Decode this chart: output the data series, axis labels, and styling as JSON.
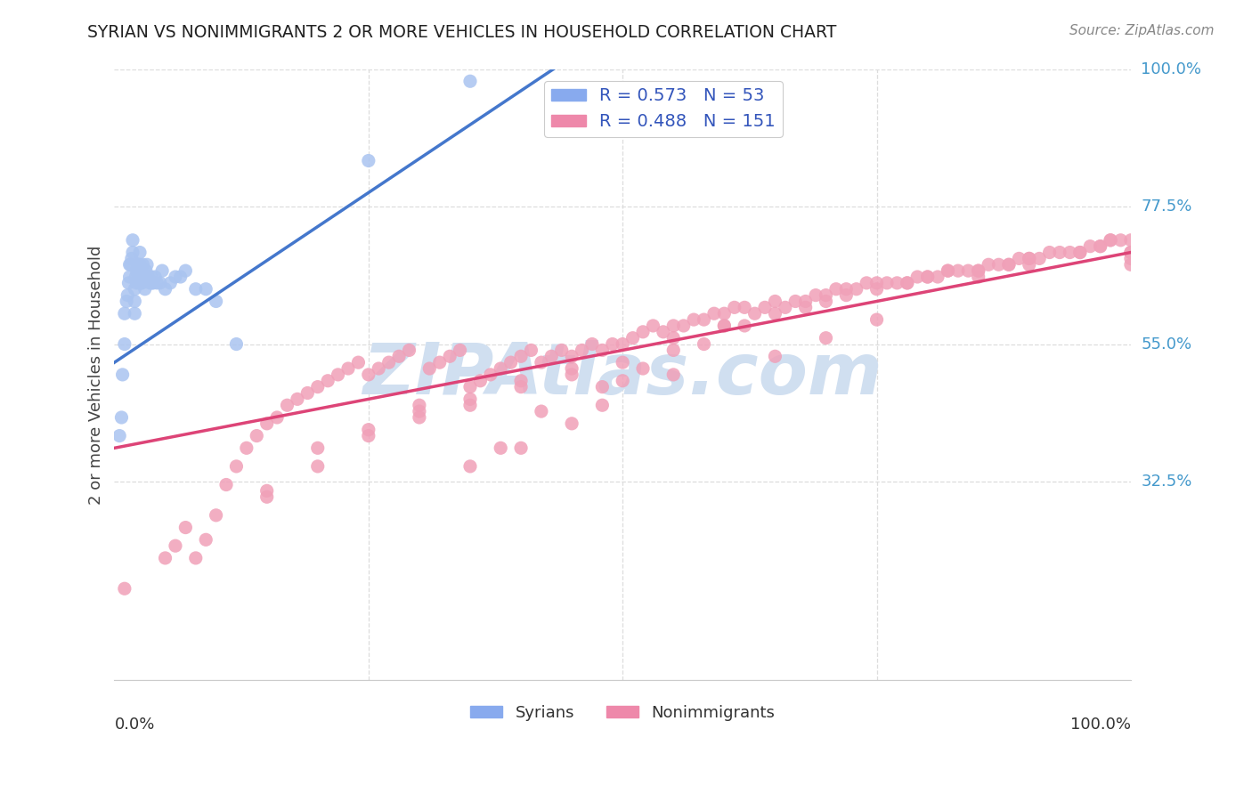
{
  "title": "SYRIAN VS NONIMMIGRANTS 2 OR MORE VEHICLES IN HOUSEHOLD CORRELATION CHART",
  "source": "Source: ZipAtlas.com",
  "ylabel": "2 or more Vehicles in Household",
  "legend_blue_text": "R = 0.573   N = 53",
  "legend_pink_text": "R = 0.488   N = 151",
  "legend_label_blue": "Syrians",
  "legend_label_pink": "Nonimmigrants",
  "bg_color": "#ffffff",
  "blue_dot_color": "#aac4f0",
  "pink_dot_color": "#f0a0b8",
  "blue_line_color": "#4477cc",
  "pink_line_color": "#dd4477",
  "right_label_color": "#4499cc",
  "watermark_color": "#d0dff0",
  "title_color": "#222222",
  "source_color": "#888888",
  "grid_color": "#dddddd",
  "blue_legend_patch": "#88aaee",
  "pink_legend_patch": "#ee88aa",
  "syrians_x": [
    0.005,
    0.007,
    0.008,
    0.01,
    0.01,
    0.012,
    0.013,
    0.014,
    0.015,
    0.015,
    0.016,
    0.017,
    0.018,
    0.018,
    0.02,
    0.02,
    0.02,
    0.021,
    0.022,
    0.022,
    0.023,
    0.023,
    0.024,
    0.025,
    0.025,
    0.026,
    0.027,
    0.028,
    0.028,
    0.03,
    0.03,
    0.031,
    0.032,
    0.033,
    0.035,
    0.036,
    0.037,
    0.038,
    0.04,
    0.042,
    0.045,
    0.047,
    0.05,
    0.055,
    0.06,
    0.065,
    0.07,
    0.08,
    0.09,
    0.1,
    0.12,
    0.25,
    0.35
  ],
  "syrians_y": [
    0.4,
    0.43,
    0.5,
    0.55,
    0.6,
    0.62,
    0.63,
    0.65,
    0.66,
    0.68,
    0.68,
    0.69,
    0.7,
    0.72,
    0.6,
    0.62,
    0.64,
    0.66,
    0.65,
    0.67,
    0.67,
    0.68,
    0.68,
    0.68,
    0.7,
    0.65,
    0.65,
    0.66,
    0.68,
    0.64,
    0.66,
    0.67,
    0.68,
    0.66,
    0.65,
    0.66,
    0.65,
    0.65,
    0.66,
    0.65,
    0.65,
    0.67,
    0.64,
    0.65,
    0.66,
    0.66,
    0.67,
    0.64,
    0.64,
    0.62,
    0.55,
    0.85,
    0.98
  ],
  "nonimm_x": [
    0.01,
    0.05,
    0.06,
    0.07,
    0.08,
    0.09,
    0.1,
    0.11,
    0.12,
    0.13,
    0.14,
    0.15,
    0.16,
    0.17,
    0.18,
    0.19,
    0.2,
    0.21,
    0.22,
    0.23,
    0.24,
    0.25,
    0.26,
    0.27,
    0.28,
    0.29,
    0.3,
    0.31,
    0.32,
    0.33,
    0.34,
    0.35,
    0.36,
    0.37,
    0.38,
    0.39,
    0.4,
    0.41,
    0.42,
    0.43,
    0.44,
    0.45,
    0.46,
    0.47,
    0.48,
    0.49,
    0.5,
    0.51,
    0.52,
    0.53,
    0.54,
    0.55,
    0.56,
    0.57,
    0.58,
    0.59,
    0.6,
    0.61,
    0.62,
    0.63,
    0.64,
    0.65,
    0.66,
    0.67,
    0.68,
    0.69,
    0.7,
    0.71,
    0.72,
    0.73,
    0.74,
    0.75,
    0.76,
    0.77,
    0.78,
    0.79,
    0.8,
    0.81,
    0.82,
    0.83,
    0.84,
    0.85,
    0.86,
    0.87,
    0.88,
    0.89,
    0.9,
    0.91,
    0.92,
    0.93,
    0.94,
    0.95,
    0.96,
    0.97,
    0.98,
    0.99,
    1.0,
    1.0,
    1.0,
    0.15,
    0.2,
    0.25,
    0.3,
    0.35,
    0.4,
    0.45,
    0.2,
    0.15,
    0.25,
    0.3,
    0.35,
    0.4,
    0.45,
    0.5,
    0.55,
    0.55,
    0.6,
    0.65,
    0.7,
    0.75,
    0.8,
    0.85,
    0.9,
    0.95,
    0.97,
    0.98,
    1.0,
    1.0,
    0.5,
    0.55,
    0.4,
    0.45,
    0.35,
    0.38,
    0.42,
    0.48,
    0.52,
    0.58,
    0.62,
    0.68,
    0.72,
    0.78,
    0.82,
    0.88,
    0.65,
    0.7,
    0.75,
    0.85,
    0.9,
    0.48,
    0.6
  ],
  "nonimm_y": [
    0.15,
    0.2,
    0.22,
    0.25,
    0.2,
    0.23,
    0.27,
    0.32,
    0.35,
    0.38,
    0.4,
    0.42,
    0.43,
    0.45,
    0.46,
    0.47,
    0.48,
    0.49,
    0.5,
    0.51,
    0.52,
    0.5,
    0.51,
    0.52,
    0.53,
    0.54,
    0.45,
    0.51,
    0.52,
    0.53,
    0.54,
    0.48,
    0.49,
    0.5,
    0.51,
    0.52,
    0.53,
    0.54,
    0.52,
    0.53,
    0.54,
    0.53,
    0.54,
    0.55,
    0.54,
    0.55,
    0.55,
    0.56,
    0.57,
    0.58,
    0.57,
    0.58,
    0.58,
    0.59,
    0.59,
    0.6,
    0.6,
    0.61,
    0.61,
    0.6,
    0.61,
    0.62,
    0.61,
    0.62,
    0.62,
    0.63,
    0.63,
    0.64,
    0.64,
    0.64,
    0.65,
    0.65,
    0.65,
    0.65,
    0.65,
    0.66,
    0.66,
    0.66,
    0.67,
    0.67,
    0.67,
    0.67,
    0.68,
    0.68,
    0.68,
    0.69,
    0.69,
    0.69,
    0.7,
    0.7,
    0.7,
    0.7,
    0.71,
    0.71,
    0.72,
    0.72,
    0.7,
    0.68,
    0.72,
    0.3,
    0.35,
    0.4,
    0.43,
    0.45,
    0.48,
    0.5,
    0.38,
    0.31,
    0.41,
    0.44,
    0.46,
    0.49,
    0.51,
    0.52,
    0.54,
    0.56,
    0.58,
    0.6,
    0.62,
    0.64,
    0.66,
    0.67,
    0.68,
    0.7,
    0.71,
    0.72,
    0.7,
    0.69,
    0.49,
    0.5,
    0.38,
    0.42,
    0.35,
    0.38,
    0.44,
    0.48,
    0.51,
    0.55,
    0.58,
    0.61,
    0.63,
    0.65,
    0.67,
    0.68,
    0.53,
    0.56,
    0.59,
    0.66,
    0.69,
    0.45,
    0.58
  ],
  "ylim_min": 0.0,
  "ylim_max": 1.0,
  "xlim_min": 0.0,
  "xlim_max": 1.0,
  "ytick_positions": [
    0.325,
    0.55,
    0.775,
    1.0
  ],
  "ytick_labels": [
    "32.5%",
    "55.0%",
    "77.5%",
    "100.0%"
  ],
  "blue_line_x0": 0.0,
  "blue_line_x1": 0.45,
  "blue_line_y0": 0.52,
  "blue_line_y1": 1.02,
  "pink_line_x0": 0.0,
  "pink_line_x1": 1.0,
  "pink_line_y0": 0.38,
  "pink_line_y1": 0.7
}
